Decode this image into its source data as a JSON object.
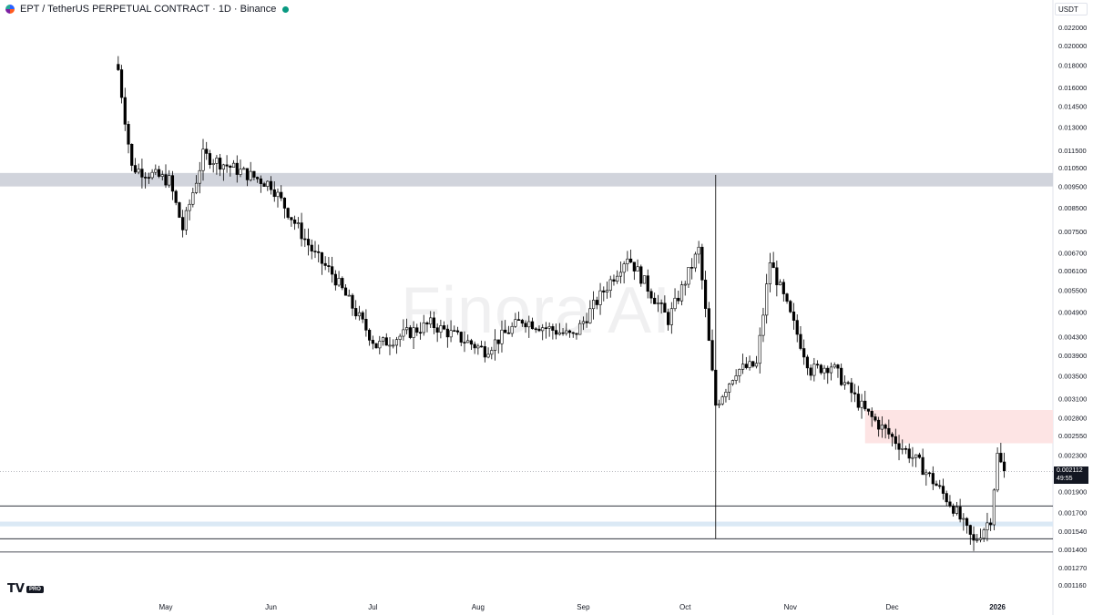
{
  "header": {
    "title": "EPT / TetherUS PERPETUAL CONTRACT · 1D · Binance"
  },
  "currency": "USDT",
  "watermark": "Finora AI",
  "logo": {
    "mark": "TV",
    "badge": "PRO"
  },
  "last_price": {
    "value": "0.002112",
    "countdown": "49:55"
  },
  "colors": {
    "up": "#ffffff",
    "down": "#000000",
    "wick": "#000000",
    "zone_gray": "#d1d4dc",
    "zone_pink": "#fde4e4",
    "zone_blue": "#dbe9f5",
    "status": "#089981"
  },
  "chart_data": {
    "type": "candlestick",
    "title": "",
    "xlabel": "",
    "ylabel": "",
    "y_scale": "log",
    "ylim": [
      0.00108,
      0.0245
    ],
    "x_ticks": [
      "May",
      "Jun",
      "Jul",
      "Aug",
      "Sep",
      "Oct",
      "Nov",
      "Dec",
      "2026"
    ],
    "y_ticks": [
      "0.022000",
      "0.020000",
      "0.018000",
      "0.016000",
      "0.014500",
      "0.013000",
      "0.011500",
      "0.010500",
      "0.009500",
      "0.008500",
      "0.007500",
      "0.006700",
      "0.006100",
      "0.005500",
      "0.004900",
      "0.004300",
      "0.003900",
      "0.003500",
      "0.003100",
      "0.002800",
      "0.002550",
      "0.002300",
      "0.001900",
      "0.001700",
      "0.001540",
      "0.001400",
      "0.001270",
      "0.001160"
    ],
    "zones": [
      {
        "name": "gray-zone",
        "from": 0.0095,
        "to": 0.0102,
        "color": "#d1d4dc"
      },
      {
        "name": "pink-zone",
        "from": 0.00245,
        "to": 0.00292,
        "color": "#fde4e4"
      },
      {
        "name": "blue-zone",
        "from": 0.00158,
        "to": 0.00162,
        "color": "#dbe9f5"
      }
    ],
    "levels": [
      0.00176,
      0.00148,
      0.00138
    ],
    "last_price": 0.002112,
    "anchors": [
      {
        "label": "Apr 17",
        "price": 0.0176
      },
      {
        "label": "Apr 21",
        "price": 0.0105
      },
      {
        "label": "May 2",
        "price": 0.0098
      },
      {
        "label": "May 6",
        "price": 0.0076
      },
      {
        "label": "May 12",
        "price": 0.0112
      },
      {
        "label": "Jun 1",
        "price": 0.0096
      },
      {
        "label": "Jun 14",
        "price": 0.0066
      },
      {
        "label": "Jun 19",
        "price": 0.006
      },
      {
        "label": "Jul 2",
        "price": 0.0041
      },
      {
        "label": "Jul 18",
        "price": 0.0046
      },
      {
        "label": "Aug 3",
        "price": 0.004
      },
      {
        "label": "Aug 14",
        "price": 0.0047
      },
      {
        "label": "Aug 29",
        "price": 0.0043
      },
      {
        "label": "Sep 14",
        "price": 0.0066
      },
      {
        "label": "Sep 26",
        "price": 0.0047
      },
      {
        "label": "Oct 5",
        "price": 0.0068
      },
      {
        "label": "Oct 10",
        "price": 0.003
      },
      {
        "label": "Oct 16",
        "price": 0.0036
      },
      {
        "label": "Oct 22",
        "price": 0.0037
      },
      {
        "label": "Oct 26",
        "price": 0.0064
      },
      {
        "label": "Nov 7",
        "price": 0.0036
      },
      {
        "label": "Nov 13",
        "price": 0.0037
      },
      {
        "label": "Nov 23",
        "price": 0.0029
      },
      {
        "label": "Dec 9",
        "price": 0.0022
      },
      {
        "label": "Dec 19",
        "price": 0.00175
      },
      {
        "label": "Dec 25",
        "price": 0.00145
      },
      {
        "label": "Dec 30",
        "price": 0.00165
      },
      {
        "label": "Jan 1",
        "price": 0.0023
      },
      {
        "label": "Jan 3",
        "price": 0.0021
      }
    ]
  }
}
